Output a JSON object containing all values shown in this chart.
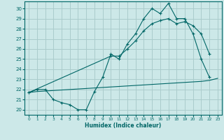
{
  "xlabel": "Humidex (Indice chaleur)",
  "bg_color": "#cce8e8",
  "grid_color": "#aacccc",
  "line_color": "#006666",
  "xlim": [
    -0.5,
    23.5
  ],
  "ylim": [
    19.5,
    30.7
  ],
  "yticks": [
    20,
    21,
    22,
    23,
    24,
    25,
    26,
    27,
    28,
    29,
    30
  ],
  "xticks": [
    0,
    1,
    2,
    3,
    4,
    5,
    6,
    7,
    8,
    9,
    10,
    11,
    12,
    13,
    14,
    15,
    16,
    17,
    18,
    19,
    20,
    21,
    22,
    23
  ],
  "line1_x": [
    0,
    1,
    2,
    3,
    4,
    5,
    6,
    7,
    8,
    9,
    10,
    11,
    12,
    13,
    14,
    15,
    16,
    17,
    18,
    19,
    20,
    21,
    22
  ],
  "line1_y": [
    21.7,
    22.0,
    22.0,
    21.0,
    20.7,
    20.5,
    20.0,
    20.0,
    21.8,
    23.2,
    25.5,
    25.0,
    26.5,
    27.5,
    29.0,
    30.0,
    29.5,
    30.5,
    29.0,
    29.0,
    27.5,
    25.0,
    23.2
  ],
  "line2_x": [
    0,
    10,
    11,
    12,
    13,
    14,
    15,
    16,
    17,
    18,
    19,
    20,
    21,
    22
  ],
  "line2_y": [
    21.7,
    25.3,
    25.3,
    26.0,
    26.8,
    27.8,
    28.5,
    28.8,
    29.0,
    28.5,
    28.7,
    28.3,
    27.5,
    25.5
  ],
  "line3_x": [
    0,
    1,
    2,
    3,
    4,
    5,
    6,
    7,
    8,
    9,
    10,
    11,
    12,
    13,
    14,
    15,
    16,
    17,
    18,
    19,
    20,
    21,
    22,
    23
  ],
  "line3_y": [
    21.7,
    21.8,
    21.85,
    21.9,
    21.95,
    22.0,
    22.05,
    22.1,
    22.15,
    22.2,
    22.25,
    22.3,
    22.35,
    22.4,
    22.45,
    22.5,
    22.55,
    22.6,
    22.65,
    22.7,
    22.75,
    22.8,
    22.9,
    23.1
  ]
}
